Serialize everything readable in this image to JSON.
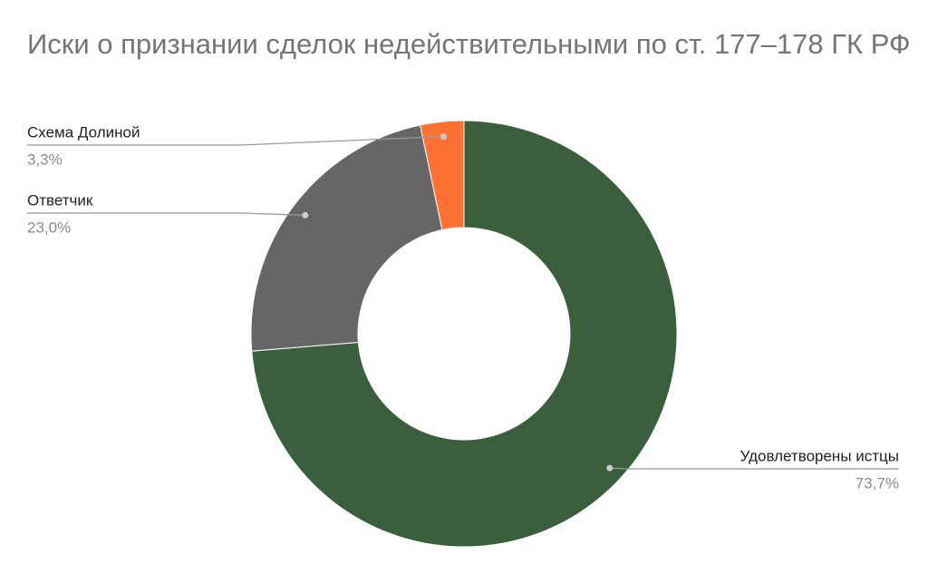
{
  "chart_data": {
    "type": "donut",
    "title": "Иски о признании сделок недействительными по ст. 177–178 ГК РФ",
    "categories": [
      "Удовлетворены истцы",
      "Ответчик",
      "Схема Долиной"
    ],
    "values": [
      73.7,
      23.0,
      3.3
    ],
    "value_labels": [
      "73,7%",
      "23,0%",
      "3,3%"
    ],
    "colors": [
      "#3b5e3d",
      "#666666",
      "#ff7033"
    ]
  }
}
